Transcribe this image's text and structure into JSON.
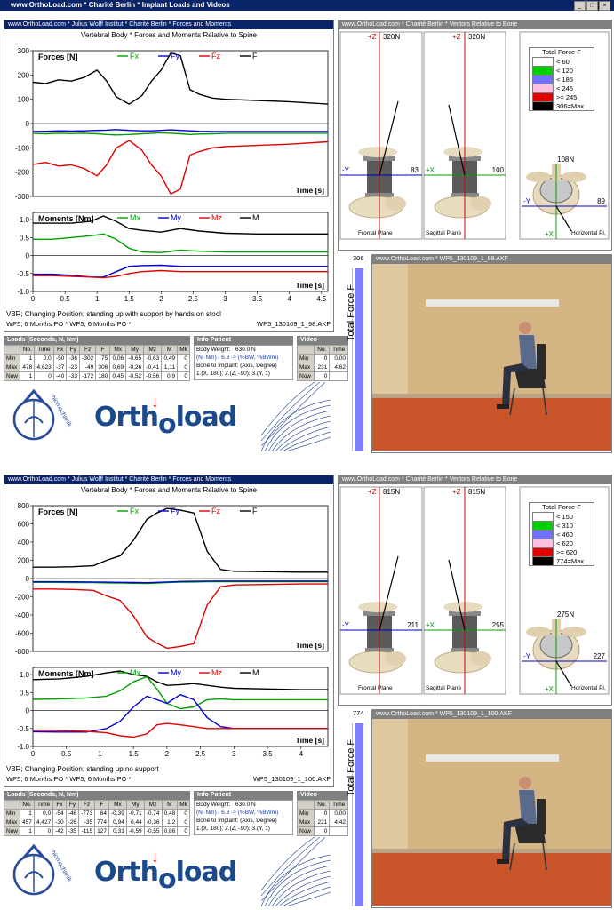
{
  "window": {
    "title": "www.OrthoLoad.com * Charité Berlin * Implant Loads and Videos",
    "min": "_",
    "max": "□",
    "close": "×"
  },
  "colors": {
    "fx": "#00a000",
    "fy": "#0000d0",
    "fz": "#e00000",
    "f": "#000000"
  },
  "top": {
    "main_title": "www.OrthoLoad.com * Julius Wolff Institut * Charité Berlin * Forces and Moments",
    "chart_heading": "Vertebral Body * Forces and Moments  Relative to Spine",
    "forces_label": "Forces  [N]",
    "moments_label": "Moments  [Nm]",
    "time_label": "Time  [s]",
    "leg_fx": "Fx",
    "leg_fy": "Fy",
    "leg_fz": "Fz",
    "leg_f": "F",
    "leg_mx": "Mx",
    "leg_my": "My",
    "leg_mz": "Mz",
    "leg_m": "M",
    "force_ticks": [
      "300",
      "200",
      "100",
      "0",
      "-100",
      "-200",
      "-300"
    ],
    "moment_ticks": [
      "1.0",
      "0.5",
      "0",
      "-0.5",
      "-1.0"
    ],
    "x_ticks": [
      "0",
      "0.5",
      "1",
      "1.5",
      "2",
      "2.5",
      "3",
      "3.5",
      "4",
      "4.5"
    ],
    "desc1": "VBR; Changing Position; standing up with support by hands on stool",
    "desc2": "WP5, 6 Months PO * WP5, 6 Months PO *",
    "file": "WP5_130109_1_98.AKF",
    "loads_title": "Loads    (Seconds, N, Nm)",
    "loads_headers": [
      "",
      "No.",
      "Time",
      "Fx",
      "Fy",
      "Fz",
      "F",
      "Mx",
      "My",
      "Mz",
      "M",
      "Mk"
    ],
    "loads_rows": [
      [
        "Min",
        "1",
        "0,0",
        "-50",
        "-36",
        "-302",
        "75",
        "0,06",
        "-0,65",
        "-0,63",
        "0,49",
        "0"
      ],
      [
        "Max",
        "478",
        "4,623",
        "-37",
        "-23",
        "-49",
        "306",
        "0,69",
        "-0,26",
        "-0,41",
        "1,11",
        "0"
      ],
      [
        "Now",
        "1",
        "0",
        "-40",
        "-33",
        "-172",
        "180",
        "0,45",
        "-0,52",
        "-0,56",
        "0,9",
        "0"
      ]
    ],
    "info_title": "Info Patient",
    "bw_label": "Body Weight:",
    "bw_value": "630.0 N",
    "units_line": "(N, Nm) / 6.3 -> (%BW, %BWm)",
    "bone_line": "Bone to Implant: (Axis, Degree)",
    "axis_line": "1.(X, 180); 2.(Z, -90); 3.(Y, 1)",
    "video_title": "Video",
    "video_headers": [
      "",
      "No.",
      "Time"
    ],
    "video_rows": [
      [
        "Min",
        "0",
        "0.00"
      ],
      [
        "Max",
        "231",
        "4.62"
      ],
      [
        "Now",
        "0",
        ""
      ]
    ],
    "vectors_title": "www.OrthoLoad.com * Charité Berlin * Vectors Relative to Bone",
    "vec_file": "WP5_130109_1_98.AKF",
    "plus_z1": "+Z",
    "z1_val": "320N",
    "plus_z2": "+Z",
    "z2_val": "320N",
    "minus_y1": "-Y",
    "val_83": "83",
    "plus_x1": "+X",
    "val_100": "100",
    "minus_y2": "-Y",
    "val_89": "89",
    "val_108": "108N",
    "plus_x2": "+X",
    "frontal": "Frontal Plane",
    "sagittal": "Sagittal Plane",
    "horizontal": "Horizontal Pl.",
    "legend_title": "Total Force F",
    "legend_items": [
      {
        "label": "< 60",
        "color": "#ffffff"
      },
      {
        "label": "< 120",
        "color": "#00d000"
      },
      {
        "label": "< 185",
        "color": "#7070ff"
      },
      {
        "label": "< 245",
        "color": "#ffc0e0"
      },
      {
        "label": ">= 245",
        "color": "#e00000"
      },
      {
        "label": "306=Max",
        "color": "#000000"
      }
    ],
    "video_panel_title": "www.OrthoLoad.com * WP5_130109_1_98.AKF",
    "total_force_label": "Total  Force  F",
    "tf_value": "306"
  },
  "bottom": {
    "main_title": "www.OrthoLoad.com * Julius Wolff Institut * Charité Berlin * Forces and Moments",
    "chart_heading": "Vertebral Body * Forces and Moments  Relative to Spine",
    "forces_label": "Forces  [N]",
    "moments_label": "Moments  [Nm]",
    "time_label": "Time  [s]",
    "leg_fx": "Fx",
    "leg_fy": "Fy",
    "leg_fz": "Fz",
    "leg_f": "F",
    "leg_mx": "Mx",
    "leg_my": "My",
    "leg_mz": "Mz",
    "leg_m": "M",
    "force_ticks": [
      "800",
      "600",
      "400",
      "200",
      "0",
      "-200",
      "-400",
      "-600",
      "-800"
    ],
    "moment_ticks": [
      "1.0",
      "0.5",
      "0",
      "-0.5",
      "-1.0"
    ],
    "x_ticks": [
      "0",
      "0.5",
      "1",
      "1.5",
      "2",
      "2.5",
      "3",
      "3.5",
      "4"
    ],
    "desc1": "VBR; Changing Position; standing up no support",
    "desc2": "WP5, 6 Months PO * WP5, 6 Months PO *",
    "file": "WP5_130109_1_100.AKF",
    "loads_title": "Loads    (Seconds, N, Nm)",
    "loads_headers": [
      "",
      "No.",
      "Time",
      "Fx",
      "Fy",
      "Fz",
      "F",
      "Mx",
      "My",
      "Mz",
      "M",
      "Mk"
    ],
    "loads_rows": [
      [
        "Min",
        "1",
        "0,0",
        "-54",
        "-46",
        "-773",
        "64",
        "-0,39",
        "-0,71",
        "-0,74",
        "0,48",
        "0"
      ],
      [
        "Max",
        "457",
        "4,427",
        "-30",
        "-26",
        "-35",
        "774",
        "0,94",
        "0,44",
        "-0,36",
        "1,2",
        "0"
      ],
      [
        "Now",
        "1",
        "0",
        "-42",
        "-35",
        "-115",
        "127",
        "0,31",
        "-0,59",
        "-0,55",
        "0,86",
        "0"
      ]
    ],
    "info_title": "Info Patient",
    "bw_label": "Body Weight:",
    "bw_value": "630.0 N",
    "units_line": "(N, Nm) / 6.3 -> (%BW, %BWm)",
    "bone_line": "Bone to Implant: (Axis, Degree)",
    "axis_line": "1.(X, 180); 2.(Z, -90); 3.(Y, 1)",
    "video_title": "Video",
    "video_headers": [
      "",
      "No.",
      "Time"
    ],
    "video_rows": [
      [
        "Min",
        "0",
        "0.00"
      ],
      [
        "Max",
        "221",
        "4.42"
      ],
      [
        "Now",
        "0",
        ""
      ]
    ],
    "vectors_title": "www.OrthoLoad.com * Charité Berlin * Vectors Relative to Bone",
    "vec_file": "WP5_130109_1_100.AKF",
    "plus_z1": "+Z",
    "z1_val": "815N",
    "plus_z2": "+Z",
    "z2_val": "815N",
    "minus_y1": "-Y",
    "val_83": "211",
    "plus_x1": "+X",
    "val_100": "255",
    "minus_y2": "-Y",
    "val_89": "227",
    "val_108": "275N",
    "plus_x2": "+X",
    "frontal": "Frontal Plane",
    "sagittal": "Sagittal Plane",
    "horizontal": "Horizontal Pl.",
    "legend_title": "Total Force F",
    "legend_items": [
      {
        "label": "< 150",
        "color": "#ffffff"
      },
      {
        "label": "< 310",
        "color": "#00d000"
      },
      {
        "label": "< 460",
        "color": "#7070ff"
      },
      {
        "label": "< 620",
        "color": "#ffc0e0"
      },
      {
        "label": ">= 620",
        "color": "#e00000"
      },
      {
        "label": "774=Max",
        "color": "#000000"
      }
    ],
    "video_panel_title": "www.OrthoLoad.com * WP5_130109_1_100.AKF",
    "total_force_label": "Total  Force  F",
    "tf_value": "774"
  },
  "logo": {
    "brand_a": "Orth",
    "brand_o": "o",
    "brand_b": "load",
    "arrow": "↓",
    "bio_text": "biomechanik"
  },
  "chart_data": [
    {
      "type": "line",
      "title": "Vertebral Body * Forces and Moments  Relative to Spine",
      "ylabel": "Forces  [N]",
      "xlabel": "Time  [s]",
      "xlim": [
        0,
        4.6
      ],
      "ylim": [
        -300,
        300
      ],
      "x": [
        0,
        0.2,
        0.4,
        0.6,
        0.8,
        1.0,
        1.15,
        1.3,
        1.5,
        1.7,
        1.85,
        2.0,
        2.15,
        2.3,
        2.45,
        2.6,
        2.8,
        3.0,
        3.5,
        4.0,
        4.6
      ],
      "series": [
        {
          "name": "F",
          "values": [
            170,
            165,
            180,
            175,
            190,
            220,
            175,
            110,
            80,
            115,
            175,
            220,
            290,
            280,
            140,
            120,
            105,
            100,
            95,
            90,
            80
          ]
        },
        {
          "name": "Fz",
          "values": [
            -168,
            -160,
            -175,
            -170,
            -185,
            -215,
            -170,
            -100,
            -70,
            -110,
            -170,
            -215,
            -290,
            -270,
            -130,
            -115,
            -100,
            -95,
            -90,
            -85,
            -75
          ]
        },
        {
          "name": "Fx",
          "values": [
            -40,
            -42,
            -40,
            -41,
            -40,
            -42,
            -45,
            -47,
            -45,
            -42,
            -40,
            -38,
            -40,
            -42,
            -45,
            -43,
            -42,
            -40,
            -40,
            -40,
            -40
          ]
        },
        {
          "name": "Fy",
          "values": [
            -33,
            -32,
            -30,
            -31,
            -30,
            -28,
            -27,
            -25,
            -28,
            -30,
            -30,
            -28,
            -26,
            -28,
            -30,
            -32,
            -33,
            -33,
            -33,
            -33,
            -33
          ]
        }
      ]
    },
    {
      "type": "line",
      "ylabel": "Moments  [Nm]",
      "xlabel": "Time  [s]",
      "xlim": [
        0,
        4.6
      ],
      "ylim": [
        -1.0,
        1.2
      ],
      "x": [
        0,
        0.3,
        0.6,
        0.9,
        1.1,
        1.3,
        1.5,
        1.7,
        2.0,
        2.3,
        2.6,
        3.0,
        3.5,
        4.0,
        4.6
      ],
      "series": [
        {
          "name": "M",
          "values": [
            0.9,
            0.9,
            0.9,
            0.95,
            1.1,
            0.95,
            0.75,
            0.7,
            0.65,
            0.75,
            0.68,
            0.62,
            0.6,
            0.6,
            0.6
          ]
        },
        {
          "name": "Mx",
          "values": [
            0.45,
            0.45,
            0.5,
            0.55,
            0.6,
            0.45,
            0.2,
            0.1,
            0.08,
            0.15,
            0.12,
            0.1,
            0.1,
            0.1,
            0.1
          ]
        },
        {
          "name": "My",
          "values": [
            -0.52,
            -0.52,
            -0.55,
            -0.6,
            -0.6,
            -0.45,
            -0.3,
            -0.28,
            -0.27,
            -0.3,
            -0.3,
            -0.3,
            -0.3,
            -0.3,
            -0.3
          ]
        },
        {
          "name": "Mz",
          "values": [
            -0.56,
            -0.56,
            -0.58,
            -0.6,
            -0.62,
            -0.58,
            -0.5,
            -0.45,
            -0.42,
            -0.45,
            -0.45,
            -0.45,
            -0.45,
            -0.45,
            -0.45
          ]
        }
      ]
    },
    {
      "type": "line",
      "title": "Vertebral Body * Forces and Moments  Relative to Spine",
      "ylabel": "Forces  [N]",
      "xlabel": "Time  [s]",
      "xlim": [
        0,
        4.4
      ],
      "ylim": [
        -800,
        800
      ],
      "x": [
        0,
        0.3,
        0.6,
        0.9,
        1.1,
        1.3,
        1.5,
        1.7,
        1.85,
        2.0,
        2.2,
        2.4,
        2.6,
        2.8,
        3.0,
        3.5,
        4.0,
        4.4
      ],
      "series": [
        {
          "name": "F",
          "values": [
            125,
            125,
            130,
            140,
            200,
            250,
            420,
            650,
            720,
            770,
            750,
            720,
            300,
            100,
            80,
            75,
            70,
            70
          ]
        },
        {
          "name": "Fz",
          "values": [
            -115,
            -115,
            -120,
            -130,
            -190,
            -240,
            -410,
            -640,
            -710,
            -765,
            -745,
            -715,
            -290,
            -90,
            -70,
            -65,
            -60,
            -60
          ]
        },
        {
          "name": "Fx",
          "values": [
            -42,
            -42,
            -44,
            -45,
            -48,
            -50,
            -52,
            -54,
            -50,
            -45,
            -40,
            -38,
            -35,
            -35,
            -35,
            -35,
            -35,
            -35
          ]
        },
        {
          "name": "Fy",
          "values": [
            -35,
            -35,
            -36,
            -38,
            -40,
            -42,
            -44,
            -46,
            -42,
            -38,
            -32,
            -30,
            -28,
            -27,
            -27,
            -27,
            -27,
            -27
          ]
        }
      ]
    },
    {
      "type": "line",
      "ylabel": "Moments  [Nm]",
      "xlabel": "Time  [s]",
      "xlim": [
        0,
        4.4
      ],
      "ylim": [
        -1.0,
        1.2
      ],
      "x": [
        0,
        0.4,
        0.8,
        1.1,
        1.3,
        1.5,
        1.7,
        1.85,
        2.0,
        2.2,
        2.4,
        2.6,
        2.8,
        3.0,
        3.5,
        4.0,
        4.4
      ],
      "series": [
        {
          "name": "M",
          "values": [
            0.86,
            0.88,
            0.95,
            1.05,
            1.1,
            1.0,
            0.95,
            0.8,
            0.7,
            0.72,
            0.75,
            0.7,
            0.65,
            0.62,
            0.6,
            0.58,
            0.58
          ]
        },
        {
          "name": "Mx",
          "values": [
            0.31,
            0.32,
            0.35,
            0.4,
            0.55,
            0.8,
            0.94,
            0.6,
            0.2,
            0.05,
            0.1,
            0.3,
            0.32,
            0.3,
            0.3,
            0.3,
            0.3
          ]
        },
        {
          "name": "My",
          "values": [
            -0.59,
            -0.6,
            -0.6,
            -0.5,
            -0.3,
            0.1,
            0.4,
            0.3,
            0.2,
            0.44,
            0.3,
            -0.2,
            -0.45,
            -0.5,
            -0.5,
            -0.5,
            -0.5
          ]
        },
        {
          "name": "Mz",
          "values": [
            -0.55,
            -0.56,
            -0.58,
            -0.62,
            -0.7,
            -0.74,
            -0.65,
            -0.4,
            -0.36,
            -0.4,
            -0.45,
            -0.5,
            -0.5,
            -0.5,
            -0.5,
            -0.5,
            -0.5
          ]
        }
      ]
    }
  ]
}
